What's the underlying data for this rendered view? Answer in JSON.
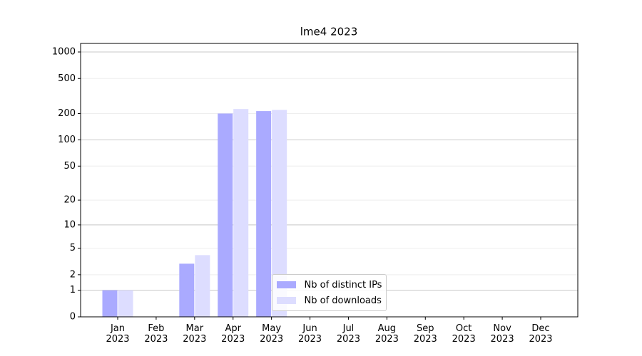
{
  "chart_data": {
    "type": "bar",
    "title": "lme4 2023",
    "categories": [
      "Jan 2023",
      "Feb 2023",
      "Mar 2023",
      "Apr 2023",
      "May 2023",
      "Jun 2023",
      "Jul 2023",
      "Aug 2023",
      "Sep 2023",
      "Oct 2023",
      "Nov 2023",
      "Dec 2023"
    ],
    "series": [
      {
        "name": "Nb of distinct IPs",
        "color": "#aaaaff",
        "values": [
          1,
          0,
          3,
          200,
          213,
          0,
          0,
          0,
          0,
          0,
          0,
          0
        ]
      },
      {
        "name": "Nb of downloads",
        "color": "#ddddff",
        "values": [
          1,
          0,
          4,
          225,
          220,
          0,
          0,
          0,
          0,
          0,
          0,
          0
        ]
      }
    ],
    "yscale": "log1p",
    "ylim": [
      0,
      1250
    ],
    "yticks": [
      0,
      1,
      2,
      5,
      10,
      20,
      50,
      100,
      200,
      500,
      1000
    ],
    "grid": true,
    "legend": "lower center"
  }
}
